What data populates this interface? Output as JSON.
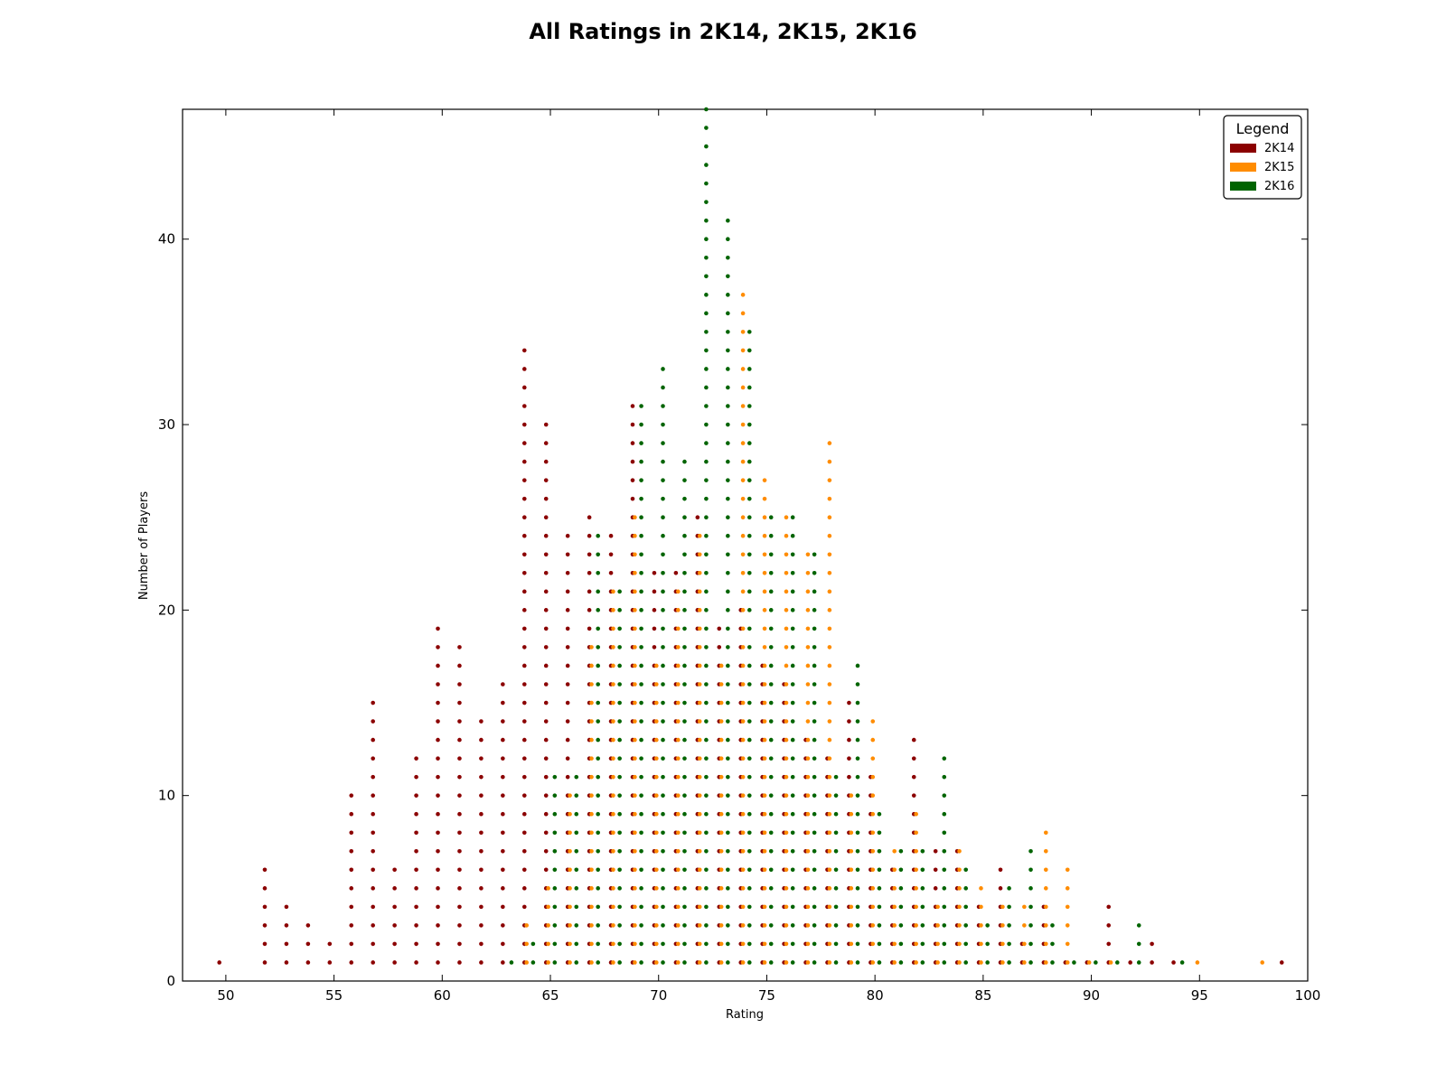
{
  "chart_data": {
    "type": "scatter",
    "title": "All Ratings in 2K14, 2K15, 2K16",
    "xlabel": "Rating",
    "ylabel": "Number of Players",
    "xlim": [
      48,
      100
    ],
    "ylim": [
      0,
      47
    ],
    "xticks": [
      50,
      55,
      60,
      65,
      70,
      75,
      80,
      85,
      90,
      95,
      100
    ],
    "yticks": [
      0,
      10,
      20,
      30,
      40
    ],
    "grid": false,
    "legend": {
      "title": "Legend",
      "position": "top-right"
    },
    "marker": "stacked-dots",
    "series": [
      {
        "name": "2K14",
        "color": "#8b0000",
        "x": [
          49.7,
          51.8,
          52.8,
          53.8,
          54.8,
          55.8,
          56.8,
          57.8,
          58.8,
          59.8,
          60.8,
          61.8,
          62.8,
          63.8,
          64.8,
          65.8,
          66.8,
          67.8,
          68.8,
          69.8,
          70.8,
          71.8,
          72.8,
          73.8,
          74.8,
          75.8,
          76.8,
          77.8,
          78.8,
          79.8,
          80.8,
          81.8,
          82.8,
          83.8,
          84.8,
          85.8,
          86.8,
          87.8,
          88.8,
          89.8,
          90.8,
          91.8,
          92.8,
          93.8,
          98.8
        ],
        "counts": [
          1,
          6,
          4,
          3,
          2,
          10,
          15,
          6,
          12,
          19,
          18,
          14,
          16,
          34,
          30,
          24,
          25,
          24,
          31,
          22,
          22,
          25,
          19,
          20,
          17,
          16,
          13,
          12,
          15,
          11,
          6,
          13,
          7,
          7,
          4,
          6,
          2,
          4,
          1,
          1,
          4,
          1,
          2,
          1,
          1
        ]
      },
      {
        "name": "2K15",
        "color": "#ff8c00",
        "x": [
          63.9,
          64.9,
          65.9,
          66.9,
          67.9,
          68.9,
          69.9,
          70.9,
          71.9,
          72.9,
          73.9,
          74.9,
          75.9,
          76.9,
          77.9,
          78.9,
          79.9,
          80.9,
          81.9,
          82.9,
          83.9,
          84.9,
          85.9,
          86.9,
          87.9,
          88.9,
          89.9,
          90.9,
          94.9,
          97.9
        ],
        "counts": [
          3,
          5,
          10,
          18,
          21,
          25,
          17,
          21,
          24,
          17,
          37,
          27,
          25,
          23,
          29,
          10,
          14,
          7,
          9,
          4,
          7,
          5,
          4,
          4,
          8,
          6,
          1,
          1,
          1,
          1
        ]
      },
      {
        "name": "2K16",
        "color": "#006400",
        "x": [
          63.2,
          64.2,
          65.2,
          66.2,
          67.2,
          68.2,
          69.2,
          70.2,
          71.2,
          72.2,
          73.2,
          74.2,
          75.2,
          76.2,
          77.2,
          78.2,
          79.2,
          80.2,
          81.2,
          82.2,
          83.2,
          84.2,
          85.2,
          86.2,
          87.2,
          88.2,
          89.2,
          90.2,
          91.2,
          92.2,
          94.2
        ],
        "counts": [
          1,
          2,
          11,
          11,
          24,
          21,
          31,
          33,
          28,
          47,
          41,
          35,
          25,
          25,
          23,
          11,
          17,
          9,
          7,
          7,
          12,
          6,
          3,
          5,
          7,
          3,
          1,
          1,
          1,
          3,
          1
        ]
      }
    ]
  }
}
